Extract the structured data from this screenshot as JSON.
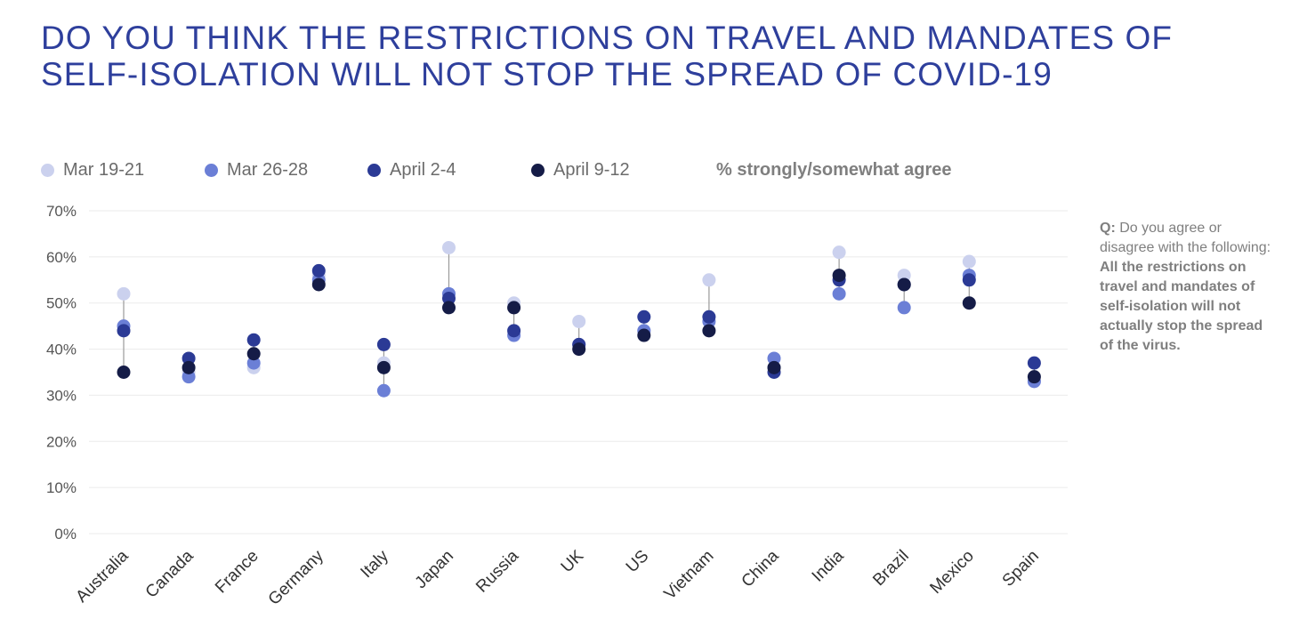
{
  "title": {
    "line1": "DO YOU THINK THE RESTRICTIONS ON TRAVEL AND MANDATES OF",
    "line2": "SELF-ISOLATION WILL NOT STOP THE SPREAD OF COVID-19"
  },
  "legend": {
    "note": "% strongly/somewhat agree"
  },
  "side_note": {
    "q_label": "Q:",
    "q_text": "Do you agree or disagree with the following:",
    "statement": "All the restrictions on travel and mandates of self-isolation will not actually stop the spread of the virus."
  },
  "colors": {
    "mar19": "#cbd1ee",
    "mar26": "#6b7fd6",
    "apr2": "#2b3a95",
    "apr9": "#151c47",
    "connector": "#9a9a9a",
    "grid": "#ebebeb"
  },
  "chart_data": {
    "type": "scatter",
    "categories": [
      "Australia",
      "Canada",
      "France",
      "Germany",
      "Italy",
      "Japan",
      "Russia",
      "UK",
      "US",
      "Vietnam",
      "China",
      "India",
      "Brazil",
      "Mexico",
      "Spain"
    ],
    "series": [
      {
        "name": "Mar 19-21",
        "color": "#cbd1ee",
        "values": [
          52,
          35,
          36,
          56,
          37,
          62,
          50,
          46,
          44,
          55,
          36,
          61,
          56,
          59,
          33
        ]
      },
      {
        "name": "Mar 26-28",
        "color": "#6b7fd6",
        "values": [
          45,
          34,
          37,
          55,
          31,
          52,
          43,
          41,
          44,
          46,
          38,
          52,
          49,
          56,
          33
        ]
      },
      {
        "name": "April 2-4",
        "color": "#2b3a95",
        "values": [
          44,
          38,
          42,
          57,
          41,
          51,
          44,
          41,
          47,
          47,
          35,
          55,
          54,
          55,
          37
        ]
      },
      {
        "name": "April 9-12",
        "color": "#151c47",
        "values": [
          35,
          36,
          39,
          54,
          36,
          49,
          49,
          40,
          43,
          44,
          36,
          56,
          54,
          50,
          34
        ]
      }
    ],
    "y_ticks": [
      "0%",
      "10%",
      "20%",
      "30%",
      "40%",
      "50%",
      "60%",
      "70%"
    ],
    "ylim": [
      0,
      70
    ],
    "grid": true,
    "legend_position": "top"
  }
}
